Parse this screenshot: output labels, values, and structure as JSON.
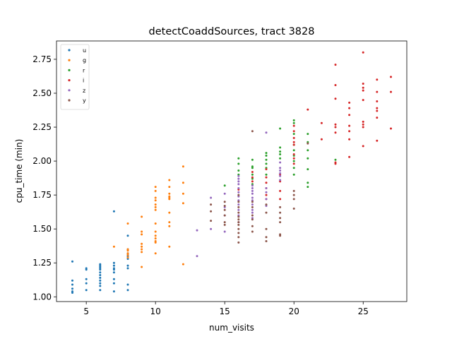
{
  "chart_data": {
    "type": "scatter",
    "title": "detectCoaddSources, tract 3828",
    "xlabel": "num_visits",
    "ylabel": "cpu_time (min)",
    "xlim": [
      2.85,
      28.15
    ],
    "ylim": [
      0.965,
      2.885
    ],
    "xticks": [
      5,
      10,
      15,
      20,
      25
    ],
    "yticks": [
      1.0,
      1.25,
      1.5,
      1.75,
      2.0,
      2.25,
      2.5,
      2.75
    ],
    "xtick_labels": [
      "5",
      "10",
      "15",
      "20",
      "25"
    ],
    "ytick_labels": [
      "1.00",
      "1.25",
      "1.50",
      "1.75",
      "2.00",
      "2.25",
      "2.50",
      "2.75"
    ],
    "grid": false,
    "legend_position": "top-left",
    "series": [
      {
        "name": "u",
        "color": "#1f77b4",
        "points": [
          [
            4,
            1.26
          ],
          [
            4,
            1.12
          ],
          [
            4,
            1.09
          ],
          [
            4,
            1.06
          ],
          [
            4,
            1.04
          ],
          [
            4,
            1.03
          ],
          [
            5,
            1.21
          ],
          [
            5,
            1.2
          ],
          [
            5,
            1.13
          ],
          [
            5,
            1.1
          ],
          [
            5,
            1.05
          ],
          [
            6,
            1.24
          ],
          [
            6,
            1.23
          ],
          [
            6,
            1.22
          ],
          [
            6,
            1.21
          ],
          [
            6,
            1.2
          ],
          [
            6,
            1.18
          ],
          [
            6,
            1.16
          ],
          [
            6,
            1.14
          ],
          [
            6,
            1.12
          ],
          [
            6,
            1.1
          ],
          [
            6,
            1.08
          ],
          [
            6,
            1.05
          ],
          [
            7,
            1.63
          ],
          [
            7,
            1.25
          ],
          [
            7,
            1.23
          ],
          [
            7,
            1.21
          ],
          [
            7,
            1.2
          ],
          [
            7,
            1.18
          ],
          [
            7,
            1.13
          ],
          [
            7,
            1.1
          ],
          [
            7,
            1.04
          ],
          [
            8,
            1.45
          ],
          [
            8,
            1.35
          ],
          [
            8,
            1.32
          ],
          [
            8,
            1.3
          ],
          [
            8,
            1.28
          ],
          [
            8,
            1.23
          ],
          [
            8,
            1.21
          ],
          [
            8,
            1.09
          ],
          [
            8,
            1.05
          ]
        ]
      },
      {
        "name": "g",
        "color": "#ff7f0e",
        "points": [
          [
            7,
            1.37
          ],
          [
            8,
            1.54
          ],
          [
            8,
            1.35
          ],
          [
            8,
            1.34
          ],
          [
            8,
            1.32
          ],
          [
            8,
            1.31
          ],
          [
            8,
            1.29
          ],
          [
            9,
            1.59
          ],
          [
            9,
            1.48
          ],
          [
            9,
            1.46
          ],
          [
            9,
            1.39
          ],
          [
            9,
            1.37
          ],
          [
            9,
            1.35
          ],
          [
            9,
            1.33
          ],
          [
            9,
            1.22
          ],
          [
            10,
            1.81
          ],
          [
            10,
            1.78
          ],
          [
            10,
            1.73
          ],
          [
            10,
            1.71
          ],
          [
            10,
            1.68
          ],
          [
            10,
            1.66
          ],
          [
            10,
            1.64
          ],
          [
            10,
            1.54
          ],
          [
            10,
            1.48
          ],
          [
            10,
            1.45
          ],
          [
            10,
            1.43
          ],
          [
            10,
            1.41
          ],
          [
            10,
            1.4
          ],
          [
            10,
            1.32
          ],
          [
            11,
            1.86
          ],
          [
            11,
            1.81
          ],
          [
            11,
            1.76
          ],
          [
            11,
            1.74
          ],
          [
            11,
            1.73
          ],
          [
            11,
            1.72
          ],
          [
            11,
            1.62
          ],
          [
            11,
            1.55
          ],
          [
            11,
            1.52
          ],
          [
            11,
            1.37
          ],
          [
            12,
            1.96
          ],
          [
            12,
            1.84
          ],
          [
            12,
            1.76
          ],
          [
            12,
            1.69
          ],
          [
            12,
            1.24
          ]
        ]
      },
      {
        "name": "r",
        "color": "#2ca02c",
        "points": [
          [
            15,
            1.82
          ],
          [
            16,
            2.02
          ],
          [
            16,
            1.98
          ],
          [
            16,
            1.93
          ],
          [
            16,
            1.9
          ],
          [
            17,
            2.01
          ],
          [
            17,
            1.96
          ],
          [
            17,
            1.95
          ],
          [
            17,
            1.9
          ],
          [
            17,
            1.87
          ],
          [
            17,
            1.83
          ],
          [
            18,
            2.06
          ],
          [
            18,
            2.04
          ],
          [
            18,
            2.01
          ],
          [
            18,
            1.98
          ],
          [
            18,
            1.95
          ],
          [
            18,
            1.9
          ],
          [
            19,
            2.24
          ],
          [
            19,
            2.1
          ],
          [
            19,
            2.07
          ],
          [
            19,
            2.05
          ],
          [
            19,
            2.02
          ],
          [
            20,
            2.3
          ],
          [
            20,
            2.28
          ],
          [
            20,
            2.2
          ],
          [
            20,
            2.12
          ],
          [
            20,
            2.08
          ],
          [
            20,
            2.04
          ],
          [
            20,
            2.0
          ],
          [
            20,
            1.95
          ],
          [
            20,
            1.9
          ],
          [
            21,
            2.2
          ],
          [
            21,
            2.14
          ],
          [
            21,
            2.08
          ],
          [
            21,
            2.02
          ],
          [
            21,
            1.94
          ],
          [
            21,
            1.84
          ],
          [
            21,
            1.81
          ],
          [
            23,
            2.01
          ]
        ]
      },
      {
        "name": "i",
        "color": "#d62728",
        "points": [
          [
            16,
            1.79
          ],
          [
            17,
            1.92
          ],
          [
            17,
            1.88
          ],
          [
            17,
            1.85
          ],
          [
            18,
            1.94
          ],
          [
            18,
            1.88
          ],
          [
            18,
            1.84
          ],
          [
            18,
            1.8
          ],
          [
            18,
            1.75
          ],
          [
            18,
            1.72
          ],
          [
            19,
            1.9
          ],
          [
            19,
            1.85
          ],
          [
            19,
            1.78
          ],
          [
            19,
            1.72
          ],
          [
            20,
            2.26
          ],
          [
            20,
            2.22
          ],
          [
            20,
            2.17
          ],
          [
            20,
            2.14
          ],
          [
            20,
            2.12
          ],
          [
            20,
            2.05
          ],
          [
            20,
            2.02
          ],
          [
            20,
            1.98
          ],
          [
            21,
            2.38
          ],
          [
            22,
            2.28
          ],
          [
            22,
            2.16
          ],
          [
            23,
            2.71
          ],
          [
            23,
            2.56
          ],
          [
            23,
            2.46
          ],
          [
            23,
            2.27
          ],
          [
            23,
            2.25
          ],
          [
            23,
            2.21
          ],
          [
            23,
            1.99
          ],
          [
            23,
            1.98
          ],
          [
            24,
            2.43
          ],
          [
            24,
            2.39
          ],
          [
            24,
            2.34
          ],
          [
            24,
            2.26
          ],
          [
            24,
            2.22
          ],
          [
            24,
            2.16
          ],
          [
            24,
            2.03
          ],
          [
            25,
            2.8
          ],
          [
            25,
            2.57
          ],
          [
            25,
            2.54
          ],
          [
            25,
            2.52
          ],
          [
            25,
            2.45
          ],
          [
            25,
            2.29
          ],
          [
            25,
            2.27
          ],
          [
            25,
            2.25
          ],
          [
            25,
            2.11
          ],
          [
            26,
            2.6
          ],
          [
            26,
            2.51
          ],
          [
            26,
            2.44
          ],
          [
            26,
            2.39
          ],
          [
            26,
            2.37
          ],
          [
            26,
            2.32
          ],
          [
            26,
            2.15
          ],
          [
            27,
            2.62
          ],
          [
            27,
            2.51
          ],
          [
            27,
            2.24
          ]
        ]
      },
      {
        "name": "z",
        "color": "#9467bd",
        "points": [
          [
            13,
            1.49
          ],
          [
            13,
            1.3
          ],
          [
            14,
            1.73
          ],
          [
            14,
            1.5
          ],
          [
            15,
            1.76
          ],
          [
            15,
            1.66
          ],
          [
            15,
            1.6
          ],
          [
            15,
            1.48
          ],
          [
            16,
            1.89
          ],
          [
            16,
            1.87
          ],
          [
            16,
            1.85
          ],
          [
            16,
            1.83
          ],
          [
            16,
            1.8
          ],
          [
            16,
            1.77
          ],
          [
            16,
            1.74
          ],
          [
            16,
            1.71
          ],
          [
            16,
            1.68
          ],
          [
            16,
            1.64
          ],
          [
            16,
            1.6
          ],
          [
            16,
            1.55
          ],
          [
            17,
            1.82
          ],
          [
            17,
            1.8
          ],
          [
            17,
            1.78
          ],
          [
            17,
            1.76
          ],
          [
            17,
            1.73
          ],
          [
            17,
            1.71
          ],
          [
            17,
            1.68
          ],
          [
            17,
            1.64
          ],
          [
            17,
            1.62
          ],
          [
            17,
            1.58
          ],
          [
            18,
            2.21
          ],
          [
            18,
            1.8
          ],
          [
            18,
            1.77
          ],
          [
            18,
            1.72
          ],
          [
            18,
            1.67
          ],
          [
            19,
            1.99
          ],
          [
            19,
            1.95
          ],
          [
            19,
            1.93
          ],
          [
            19,
            1.91
          ],
          [
            19,
            1.89
          ],
          [
            19,
            1.86
          ]
        ]
      },
      {
        "name": "y",
        "color": "#8c564b",
        "points": [
          [
            14,
            1.68
          ],
          [
            14,
            1.63
          ],
          [
            14,
            1.56
          ],
          [
            15,
            1.7
          ],
          [
            15,
            1.67
          ],
          [
            15,
            1.64
          ],
          [
            15,
            1.6
          ],
          [
            15,
            1.55
          ],
          [
            15,
            1.53
          ],
          [
            16,
            1.75
          ],
          [
            16,
            1.7
          ],
          [
            16,
            1.66
          ],
          [
            16,
            1.62
          ],
          [
            16,
            1.59
          ],
          [
            16,
            1.57
          ],
          [
            16,
            1.55
          ],
          [
            16,
            1.53
          ],
          [
            16,
            1.5
          ],
          [
            16,
            1.47
          ],
          [
            16,
            1.44
          ],
          [
            16,
            1.4
          ],
          [
            17,
            2.22
          ],
          [
            17,
            1.7
          ],
          [
            17,
            1.66
          ],
          [
            17,
            1.6
          ],
          [
            17,
            1.57
          ],
          [
            17,
            1.52
          ],
          [
            17,
            1.48
          ],
          [
            18,
            1.68
          ],
          [
            18,
            1.62
          ],
          [
            18,
            1.5
          ],
          [
            18,
            1.44
          ],
          [
            18,
            1.41
          ],
          [
            19,
            1.66
          ],
          [
            19,
            1.62
          ],
          [
            19,
            1.58
          ],
          [
            19,
            1.55
          ],
          [
            19,
            1.46
          ],
          [
            19,
            1.45
          ],
          [
            20,
            1.78
          ],
          [
            20,
            1.75
          ],
          [
            20,
            1.72
          ],
          [
            20,
            1.65
          ],
          [
            21,
            2.13
          ]
        ]
      }
    ]
  }
}
